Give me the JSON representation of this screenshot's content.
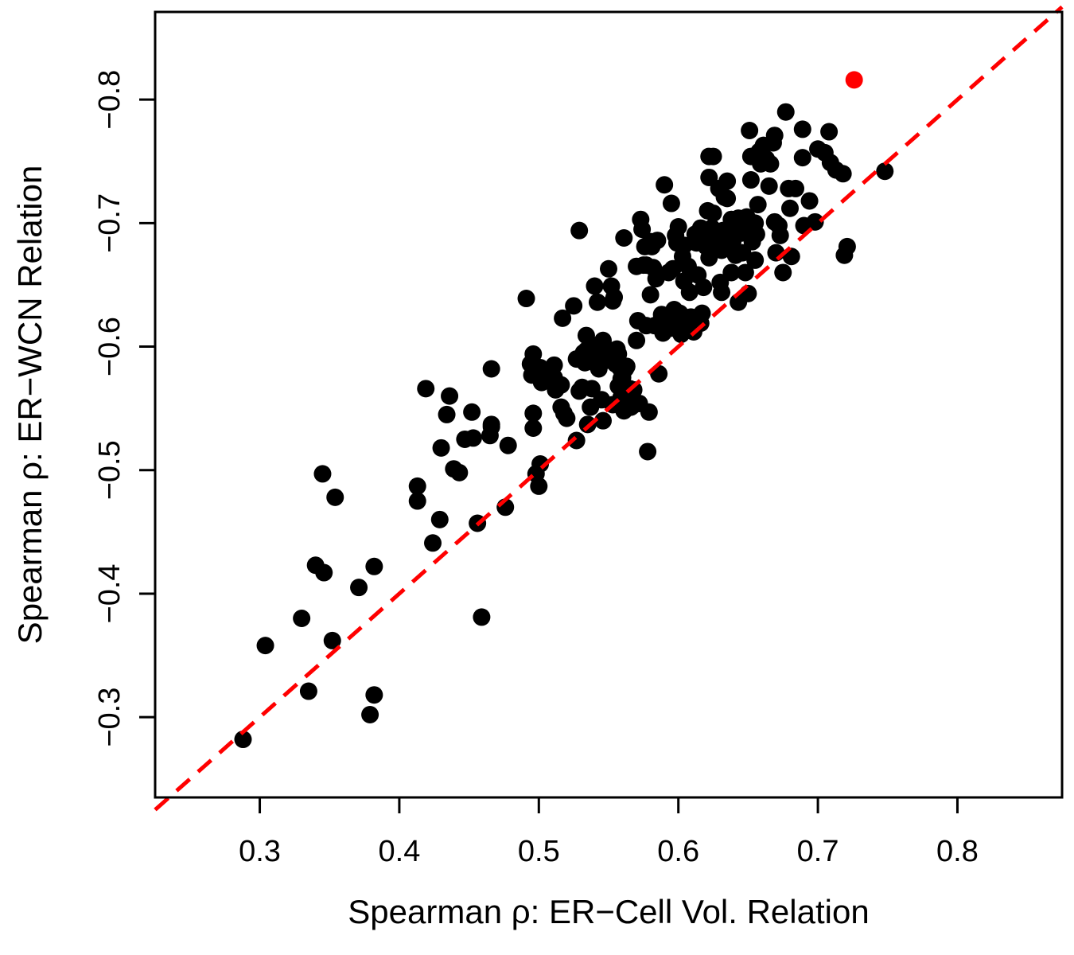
{
  "chart_data": {
    "type": "scatter",
    "xlabel": "Spearman ρ:  ER−Cell Vol. Relation",
    "ylabel": "Spearman ρ:  ER−WCN Relation",
    "xlim": [
      0.225,
      0.875
    ],
    "ylim": [
      -0.235,
      -0.871
    ],
    "x_ticks": [
      0.3,
      0.4,
      0.5,
      0.6,
      0.7,
      0.8
    ],
    "x_tick_labels": [
      "0.3",
      "0.4",
      "0.5",
      "0.6",
      "0.7",
      "0.8"
    ],
    "y_ticks": [
      -0.3,
      -0.4,
      -0.5,
      -0.6,
      -0.7,
      -0.8
    ],
    "y_tick_labels": [
      "−0.3",
      "−0.4",
      "−0.5",
      "−0.6",
      "−0.7",
      "−0.8"
    ],
    "grid": false,
    "reference_line": {
      "x": [
        0.225,
        0.875
      ],
      "y": [
        -0.225,
        -0.875
      ],
      "style": "dashed",
      "color": "#ff0000"
    },
    "highlight_point": {
      "x": 0.726,
      "y": -0.816,
      "color": "#ff0000"
    },
    "points_color": "#000000",
    "points": [
      [
        0.288,
        -0.282
      ],
      [
        0.304,
        -0.358
      ],
      [
        0.33,
        -0.38
      ],
      [
        0.335,
        -0.321
      ],
      [
        0.34,
        -0.423
      ],
      [
        0.346,
        -0.417
      ],
      [
        0.345,
        -0.497
      ],
      [
        0.352,
        -0.362
      ],
      [
        0.354,
        -0.478
      ],
      [
        0.371,
        -0.405
      ],
      [
        0.379,
        -0.302
      ],
      [
        0.382,
        -0.318
      ],
      [
        0.382,
        -0.422
      ],
      [
        0.413,
        -0.487
      ],
      [
        0.413,
        -0.475
      ],
      [
        0.419,
        -0.566
      ],
      [
        0.424,
        -0.441
      ],
      [
        0.429,
        -0.46
      ],
      [
        0.43,
        -0.518
      ],
      [
        0.434,
        -0.545
      ],
      [
        0.436,
        -0.56
      ],
      [
        0.439,
        -0.501
      ],
      [
        0.443,
        -0.498
      ],
      [
        0.447,
        -0.525
      ],
      [
        0.452,
        -0.547
      ],
      [
        0.453,
        -0.526
      ],
      [
        0.456,
        -0.457
      ],
      [
        0.459,
        -0.381
      ],
      [
        0.465,
        -0.528
      ],
      [
        0.466,
        -0.537
      ],
      [
        0.466,
        -0.535
      ],
      [
        0.466,
        -0.582
      ],
      [
        0.476,
        -0.47
      ],
      [
        0.478,
        -0.52
      ],
      [
        0.491,
        -0.639
      ],
      [
        0.494,
        -0.586
      ],
      [
        0.495,
        -0.577
      ],
      [
        0.496,
        -0.594
      ],
      [
        0.496,
        -0.546
      ],
      [
        0.496,
        -0.534
      ],
      [
        0.498,
        -0.497
      ],
      [
        0.5,
        -0.487
      ],
      [
        0.501,
        -0.505
      ],
      [
        0.501,
        -0.583
      ],
      [
        0.501,
        -0.579
      ],
      [
        0.502,
        -0.571
      ],
      [
        0.504,
        -0.575
      ],
      [
        0.511,
        -0.585
      ],
      [
        0.511,
        -0.575
      ],
      [
        0.512,
        -0.565
      ],
      [
        0.516,
        -0.569
      ],
      [
        0.516,
        -0.551
      ],
      [
        0.517,
        -0.623
      ],
      [
        0.518,
        -0.546
      ],
      [
        0.52,
        -0.542
      ],
      [
        0.525,
        -0.633
      ],
      [
        0.527,
        -0.59
      ],
      [
        0.527,
        -0.524
      ],
      [
        0.529,
        -0.564
      ],
      [
        0.529,
        -0.694
      ],
      [
        0.531,
        -0.567
      ],
      [
        0.532,
        -0.595
      ],
      [
        0.533,
        -0.587
      ],
      [
        0.534,
        -0.597
      ],
      [
        0.534,
        -0.609
      ],
      [
        0.535,
        -0.537
      ],
      [
        0.537,
        -0.551
      ],
      [
        0.538,
        -0.566
      ],
      [
        0.539,
        -0.601
      ],
      [
        0.539,
        -0.59
      ],
      [
        0.54,
        -0.649
      ],
      [
        0.541,
        -0.586
      ],
      [
        0.542,
        -0.636
      ],
      [
        0.543,
        -0.582
      ],
      [
        0.545,
        -0.557
      ],
      [
        0.546,
        -0.54
      ],
      [
        0.546,
        -0.605
      ],
      [
        0.548,
        -0.597
      ],
      [
        0.549,
        -0.589
      ],
      [
        0.55,
        -0.663
      ],
      [
        0.551,
        -0.597
      ],
      [
        0.552,
        -0.649
      ],
      [
        0.553,
        -0.553
      ],
      [
        0.553,
        -0.592
      ],
      [
        0.553,
        -0.637
      ],
      [
        0.554,
        -0.64
      ],
      [
        0.555,
        -0.586
      ],
      [
        0.556,
        -0.598
      ],
      [
        0.557,
        -0.594
      ],
      [
        0.557,
        -0.568
      ],
      [
        0.558,
        -0.583
      ],
      [
        0.559,
        -0.574
      ],
      [
        0.559,
        -0.559
      ],
      [
        0.56,
        -0.56
      ],
      [
        0.56,
        -0.575
      ],
      [
        0.561,
        -0.688
      ],
      [
        0.561,
        -0.548
      ],
      [
        0.562,
        -0.582
      ],
      [
        0.563,
        -0.584
      ],
      [
        0.565,
        -0.566
      ],
      [
        0.566,
        -0.551
      ],
      [
        0.567,
        -0.552
      ],
      [
        0.568,
        -0.565
      ],
      [
        0.57,
        -0.605
      ],
      [
        0.57,
        -0.665
      ],
      [
        0.571,
        -0.621
      ],
      [
        0.572,
        -0.554
      ],
      [
        0.573,
        -0.703
      ],
      [
        0.574,
        -0.695
      ],
      [
        0.575,
        -0.666
      ],
      [
        0.576,
        -0.681
      ],
      [
        0.577,
        -0.617
      ],
      [
        0.577,
        -0.666
      ],
      [
        0.578,
        -0.515
      ],
      [
        0.579,
        -0.547
      ],
      [
        0.58,
        -0.642
      ],
      [
        0.58,
        -0.685
      ],
      [
        0.581,
        -0.681
      ],
      [
        0.582,
        -0.664
      ],
      [
        0.583,
        -0.617
      ],
      [
        0.584,
        -0.655
      ],
      [
        0.585,
        -0.686
      ],
      [
        0.586,
        -0.578
      ],
      [
        0.587,
        -0.62
      ],
      [
        0.588,
        -0.626
      ],
      [
        0.589,
        -0.611
      ],
      [
        0.59,
        -0.731
      ],
      [
        0.591,
        -0.623
      ],
      [
        0.593,
        -0.66
      ],
      [
        0.595,
        -0.615
      ],
      [
        0.595,
        -0.716
      ],
      [
        0.596,
        -0.663
      ],
      [
        0.597,
        -0.63
      ],
      [
        0.598,
        -0.69
      ],
      [
        0.599,
        -0.684
      ],
      [
        0.6,
        -0.697
      ],
      [
        0.601,
        -0.627
      ],
      [
        0.601,
        -0.617
      ],
      [
        0.602,
        -0.61
      ],
      [
        0.603,
        -0.673
      ],
      [
        0.604,
        -0.682
      ],
      [
        0.604,
        -0.653
      ],
      [
        0.605,
        -0.614
      ],
      [
        0.607,
        -0.665
      ],
      [
        0.608,
        -0.644
      ],
      [
        0.609,
        -0.624
      ],
      [
        0.61,
        -0.617
      ],
      [
        0.611,
        -0.612
      ],
      [
        0.612,
        -0.691
      ],
      [
        0.613,
        -0.684
      ],
      [
        0.614,
        -0.658
      ],
      [
        0.615,
        -0.693
      ],
      [
        0.616,
        -0.619
      ],
      [
        0.616,
        -0.696
      ],
      [
        0.617,
        -0.627
      ],
      [
        0.618,
        -0.648
      ],
      [
        0.62,
        -0.681
      ],
      [
        0.621,
        -0.71
      ],
      [
        0.622,
        -0.672
      ],
      [
        0.622,
        -0.737
      ],
      [
        0.622,
        -0.754
      ],
      [
        0.623,
        -0.69
      ],
      [
        0.624,
        -0.696
      ],
      [
        0.625,
        -0.754
      ],
      [
        0.625,
        -0.708
      ],
      [
        0.626,
        -0.683
      ],
      [
        0.628,
        -0.689
      ],
      [
        0.629,
        -0.728
      ],
      [
        0.63,
        -0.652
      ],
      [
        0.631,
        -0.644
      ],
      [
        0.631,
        -0.678
      ],
      [
        0.632,
        -0.694
      ],
      [
        0.633,
        -0.721
      ],
      [
        0.635,
        -0.734
      ],
      [
        0.635,
        -0.72
      ],
      [
        0.636,
        -0.69
      ],
      [
        0.638,
        -0.66
      ],
      [
        0.638,
        -0.703
      ],
      [
        0.639,
        -0.685
      ],
      [
        0.64,
        -0.69
      ],
      [
        0.641,
        -0.674
      ],
      [
        0.642,
        -0.694
      ],
      [
        0.643,
        -0.636
      ],
      [
        0.643,
        -0.704
      ],
      [
        0.645,
        -0.692
      ],
      [
        0.645,
        -0.697
      ],
      [
        0.646,
        -0.676
      ],
      [
        0.647,
        -0.7
      ],
      [
        0.648,
        -0.66
      ],
      [
        0.649,
        -0.705
      ],
      [
        0.65,
        -0.643
      ],
      [
        0.65,
        -0.703
      ],
      [
        0.651,
        -0.775
      ],
      [
        0.652,
        -0.754
      ],
      [
        0.652,
        -0.735
      ],
      [
        0.653,
        -0.685
      ],
      [
        0.654,
        -0.696
      ],
      [
        0.655,
        -0.7
      ],
      [
        0.655,
        -0.67
      ],
      [
        0.656,
        -0.691
      ],
      [
        0.657,
        -0.715
      ],
      [
        0.658,
        -0.758
      ],
      [
        0.659,
        -0.748
      ],
      [
        0.66,
        -0.756
      ],
      [
        0.661,
        -0.763
      ],
      [
        0.663,
        -0.752
      ],
      [
        0.665,
        -0.73
      ],
      [
        0.666,
        -0.748
      ],
      [
        0.668,
        -0.765
      ],
      [
        0.669,
        -0.771
      ],
      [
        0.669,
        -0.701
      ],
      [
        0.67,
        -0.676
      ],
      [
        0.672,
        -0.698
      ],
      [
        0.673,
        -0.69
      ],
      [
        0.675,
        -0.66
      ],
      [
        0.677,
        -0.79
      ],
      [
        0.679,
        -0.728
      ],
      [
        0.68,
        -0.712
      ],
      [
        0.681,
        -0.673
      ],
      [
        0.684,
        -0.728
      ],
      [
        0.689,
        -0.776
      ],
      [
        0.689,
        -0.753
      ],
      [
        0.69,
        -0.698
      ],
      [
        0.694,
        -0.718
      ],
      [
        0.698,
        -0.701
      ],
      [
        0.7,
        -0.76
      ],
      [
        0.705,
        -0.757
      ],
      [
        0.708,
        -0.774
      ],
      [
        0.709,
        -0.749
      ],
      [
        0.713,
        -0.743
      ],
      [
        0.718,
        -0.74
      ],
      [
        0.719,
        -0.674
      ],
      [
        0.721,
        -0.681
      ],
      [
        0.748,
        -0.742
      ]
    ]
  }
}
